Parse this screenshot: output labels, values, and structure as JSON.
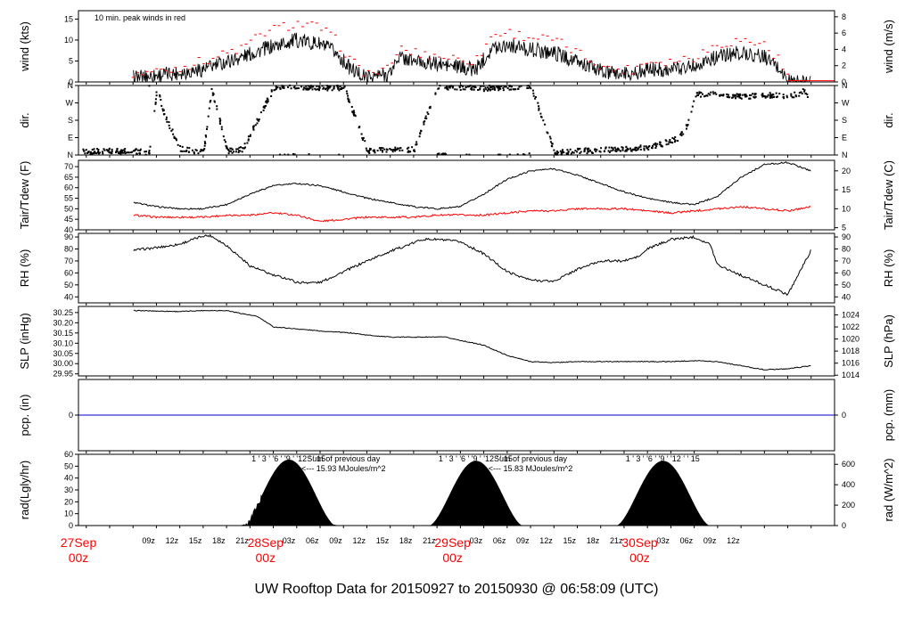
{
  "title": "UW Rooftop Data for 20150927  to  20150930 @ 06:58:09  (UTC)",
  "colors": {
    "title": "#0000cc",
    "peak": "#ff0000",
    "dew": "#ff0000",
    "pcp": "#0000cc",
    "annot": "#8800cc",
    "day": "#ff0000"
  },
  "chart_data": [
    {
      "type": "line",
      "ylabel": "wind (kts)",
      "ylabel_right": "wind (m/s)",
      "ylim": [
        0,
        17
      ],
      "ticks": [
        0,
        5,
        10,
        15
      ],
      "right_ylim": [
        0,
        8.75
      ],
      "right_ticks": [
        0,
        2,
        4,
        6,
        8
      ],
      "annotation": "10 min. peak winds in red",
      "x_hours": [
        0,
        5,
        9,
        14,
        17,
        21,
        24,
        26,
        28,
        30,
        33,
        34,
        36,
        40,
        44,
        46,
        48,
        50,
        54,
        58,
        61,
        64,
        66,
        69,
        72,
        75,
        78,
        81,
        83,
        84,
        85,
        87
      ],
      "series": [
        {
          "name": "wind",
          "values": [
            1,
            2,
            3,
            6,
            8,
            10,
            9,
            7,
            3,
            1,
            2,
            6,
            5,
            4,
            3,
            8,
            9,
            8,
            7,
            4,
            2,
            2,
            3,
            3,
            4,
            6,
            7,
            6,
            3,
            0.3,
            0,
            0
          ]
        },
        {
          "name": "peak",
          "values": [
            2,
            3,
            5,
            8,
            12,
            14,
            13,
            10,
            5,
            2,
            3,
            8,
            7,
            6,
            5,
            11,
            12,
            11,
            10,
            6,
            3,
            3,
            5,
            5,
            6,
            9,
            10,
            9,
            5,
            1,
            0.3,
            0.3
          ]
        }
      ]
    },
    {
      "type": "scatter",
      "ylabel": "dir.",
      "ylabel_right": "dir.",
      "tick_labels": [
        "N",
        "E",
        "S",
        "W",
        "N"
      ],
      "ylim": [
        0,
        360
      ],
      "x_hours": [
        0,
        2,
        3,
        4,
        6,
        9,
        10,
        12,
        14,
        18,
        21,
        24,
        27,
        30,
        33,
        36,
        39,
        42,
        45,
        48,
        51,
        54,
        57,
        60,
        63,
        66,
        68,
        70,
        71,
        72,
        74,
        76,
        78,
        80,
        82,
        84,
        86,
        87
      ],
      "values": [
        20,
        10,
        350,
        200,
        30,
        15,
        345,
        20,
        30,
        350,
        355,
        345,
        350,
        20,
        25,
        30,
        355,
        350,
        345,
        350,
        355,
        10,
        20,
        25,
        30,
        40,
        60,
        90,
        150,
        310,
        320,
        310,
        300,
        305,
        310,
        300,
        330,
        290
      ]
    },
    {
      "type": "line",
      "ylabel": "Tair/Tdew (F)",
      "ylabel_right": "Tair/Tdew (C)",
      "ylim": [
        40,
        73
      ],
      "ticks": [
        40,
        45,
        50,
        55,
        60,
        65,
        70
      ],
      "right_ticks_c": [
        5,
        10,
        15,
        20
      ],
      "x_hours": [
        0,
        3,
        6,
        9,
        12,
        15,
        18,
        21,
        24,
        27,
        30,
        33,
        36,
        39,
        42,
        45,
        48,
        51,
        54,
        57,
        60,
        63,
        66,
        69,
        72,
        75,
        78,
        81,
        84,
        87
      ],
      "series": [
        {
          "name": "Tair",
          "values": [
            53,
            51,
            50,
            50,
            52,
            57,
            61,
            62,
            61,
            58,
            55,
            53,
            51,
            50,
            51,
            57,
            64,
            68,
            69,
            66,
            62,
            58,
            55,
            53,
            52,
            56,
            65,
            71,
            72,
            68
          ]
        },
        {
          "name": "Tdew",
          "values": [
            47,
            46,
            46,
            46,
            47,
            47,
            48,
            47,
            44,
            45,
            46,
            46,
            46,
            47,
            47,
            47,
            48,
            49,
            49,
            50,
            50,
            50,
            49,
            48,
            49,
            50,
            51,
            50,
            49,
            51
          ]
        }
      ]
    },
    {
      "type": "line",
      "ylabel": "RH (%)",
      "ylabel_right": "RH (%)",
      "ylim": [
        35,
        93
      ],
      "ticks": [
        40,
        50,
        60,
        70,
        80,
        90
      ],
      "x_hours": [
        0,
        3,
        6,
        9,
        10,
        12,
        15,
        18,
        20,
        21,
        24,
        27,
        30,
        33,
        36,
        37,
        39,
        42,
        45,
        48,
        51,
        54,
        57,
        60,
        63,
        65,
        66,
        69,
        72,
        74,
        75,
        78,
        84,
        87
      ],
      "series": [
        {
          "name": "RH",
          "values": [
            79,
            81,
            84,
            91,
            91,
            83,
            66,
            58,
            55,
            52,
            52,
            61,
            70,
            78,
            85,
            88,
            88,
            86,
            76,
            61,
            54,
            53,
            63,
            70,
            70,
            74,
            80,
            88,
            90,
            84,
            67,
            58,
            42,
            79
          ]
        }
      ]
    },
    {
      "type": "line",
      "ylabel": "SLP (inHg)",
      "ylabel_right": "SLP (hPa)",
      "ylim": [
        29.94,
        30.28
      ],
      "ticks": [
        29.95,
        30.0,
        30.05,
        30.1,
        30.15,
        30.2,
        30.25
      ],
      "right_ticks_hpa": [
        1014,
        1016,
        1018,
        1020,
        1022,
        1024
      ],
      "x_hours": [
        0,
        6,
        9,
        12,
        16,
        18,
        21,
        24,
        28,
        30,
        33,
        36,
        40,
        45,
        48,
        51,
        54,
        57,
        60,
        63,
        66,
        69,
        72,
        75,
        78,
        81,
        84,
        87
      ],
      "series": [
        {
          "name": "SLP",
          "values": [
            30.26,
            30.255,
            30.26,
            30.26,
            30.23,
            30.18,
            30.17,
            30.16,
            30.15,
            30.14,
            30.13,
            30.13,
            30.13,
            30.09,
            30.04,
            30.01,
            30.005,
            30.01,
            30.01,
            30.01,
            30.01,
            30.01,
            30.015,
            30.01,
            29.99,
            29.97,
            29.975,
            29.99
          ]
        }
      ]
    },
    {
      "type": "line",
      "ylabel": "pcp. (in)",
      "ylabel_right": "pcp. (mm)",
      "ylim": [
        -1,
        1
      ],
      "ticks": [
        0
      ],
      "right_ticks": [
        0
      ],
      "x_hours": [
        0,
        87
      ],
      "series": [
        {
          "name": "pcp",
          "values": [
            0,
            0
          ]
        }
      ]
    },
    {
      "type": "area",
      "ylabel": "rad(Lgly/hr)",
      "ylabel_right": "rad (W/m^2)",
      "ylim": [
        0,
        60
      ],
      "ticks": [
        0,
        10,
        20,
        30,
        40,
        50,
        60
      ],
      "right_ticks_wm2": [
        0,
        200,
        400,
        600
      ],
      "days": [
        {
          "sunrise": 14.0,
          "sunset": 26.0,
          "peak": 55.5,
          "marks": "1 ' 3 ' '6 ' '9 ' '12 ' ' 15",
          "sum_title": "",
          "sum_value": ""
        },
        {
          "sunrise": 38.0,
          "sunset": 50.0,
          "peak": 54.5,
          "marks": "1 ' 3 ' '6 ' '9 ' '12 ' ' 15",
          "sum_title": "Sum of previous day",
          "sum_value": "<--- 15.93 MJoules/m^2"
        },
        {
          "sunrise": 62.0,
          "sunset": 74.0,
          "peak": 54.5,
          "marks": "1 ' 3 ' '6 ' '9 ' '12 ' ' 15",
          "sum_title": "Sum of previous day",
          "sum_value": "<--- 15.83 MJoules/m^2"
        }
      ]
    }
  ],
  "x_axis": {
    "hour_labels": [
      {
        "h": 2,
        "label": "09z"
      },
      {
        "h": 5,
        "label": "12z"
      },
      {
        "h": 8,
        "label": "15z"
      },
      {
        "h": 11,
        "label": "18z"
      },
      {
        "h": 14,
        "label": "21z"
      },
      {
        "h": 20,
        "label": "03z"
      },
      {
        "h": 23,
        "label": "06z"
      },
      {
        "h": 26,
        "label": "09z"
      },
      {
        "h": 29,
        "label": "12z"
      },
      {
        "h": 32,
        "label": "15z"
      },
      {
        "h": 35,
        "label": "18z"
      },
      {
        "h": 38,
        "label": "21z"
      },
      {
        "h": 44,
        "label": "03z"
      },
      {
        "h": 47,
        "label": "06z"
      },
      {
        "h": 50,
        "label": "09z"
      },
      {
        "h": 53,
        "label": "12z"
      },
      {
        "h": 56,
        "label": "15z"
      },
      {
        "h": 59,
        "label": "18z"
      },
      {
        "h": 62,
        "label": "21z"
      },
      {
        "h": 68,
        "label": "03z"
      },
      {
        "h": 71,
        "label": "06z"
      },
      {
        "h": 74,
        "label": "09z"
      },
      {
        "h": 77,
        "label": "12z"
      }
    ],
    "day_labels": [
      {
        "h": -7,
        "day": "27Sep",
        "z": "00z"
      },
      {
        "h": 17,
        "day": "28Sep",
        "z": "00z"
      },
      {
        "h": 41,
        "day": "29Sep",
        "z": "00z"
      },
      {
        "h": 65,
        "day": "30Sep",
        "z": "00z"
      }
    ]
  }
}
